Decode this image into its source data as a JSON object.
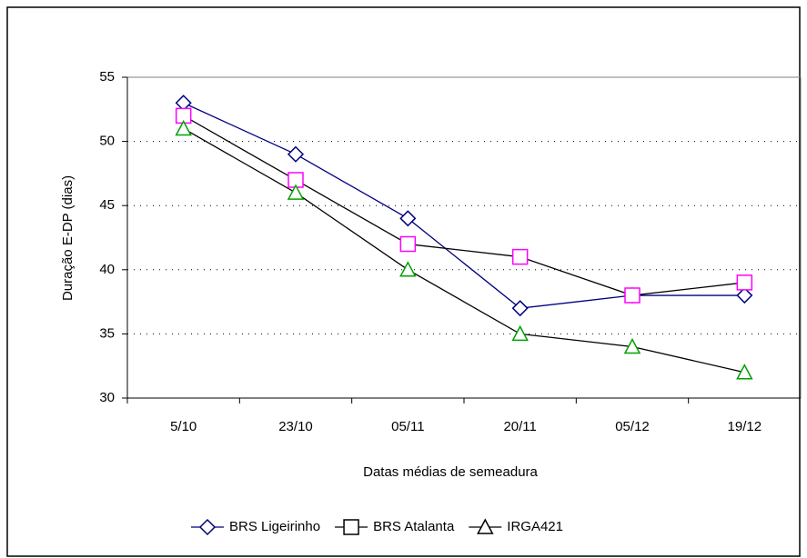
{
  "chart_data": {
    "type": "line",
    "x_label": "Datas médias de semeadura",
    "y_label": "Duração E-DP (dias)",
    "categories": [
      "5/10",
      "23/10",
      "05/11",
      "20/11",
      "05/12",
      "19/12"
    ],
    "series": [
      {
        "name": "BRS Ligeirinho",
        "color": "#000080",
        "marker": "diamond",
        "marker_color": "#000080",
        "values": [
          53,
          49,
          44,
          37,
          38,
          38
        ]
      },
      {
        "name": "BRS Atalanta",
        "color": "#000000",
        "marker": "square",
        "marker_color": "#ff00ff",
        "values": [
          52,
          47,
          42,
          41,
          38,
          39
        ]
      },
      {
        "name": "IRGA421",
        "color": "#000000",
        "marker": "triangle",
        "marker_color": "#00a000",
        "values": [
          51,
          46,
          40,
          35,
          34,
          32
        ]
      }
    ],
    "ylim": [
      30,
      55
    ],
    "yticks": [
      30,
      35,
      40,
      45,
      50,
      55
    ],
    "grid": true,
    "legend": "bottom"
  }
}
